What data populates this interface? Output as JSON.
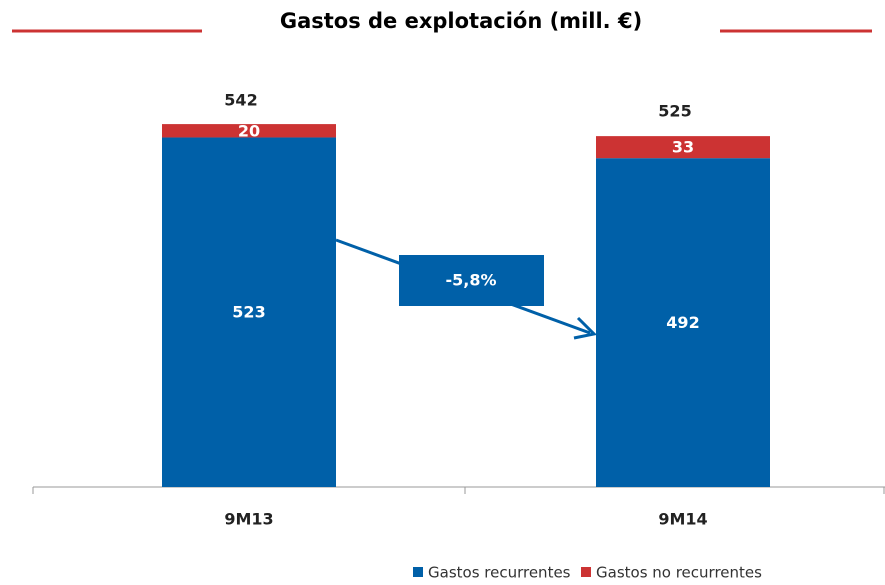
{
  "chart_data": {
    "type": "stacked_bar",
    "title": "Gastos de explotación (mill. €)",
    "categories": [
      "9M13",
      "9M14"
    ],
    "series": [
      {
        "name": "Gastos recurrentes",
        "color": "#0060a8",
        "values": [
          523,
          492
        ]
      },
      {
        "name": "Gastos no recurrentes",
        "color": "#cc3333",
        "values": [
          20,
          33
        ]
      }
    ],
    "totals": [
      542,
      525
    ],
    "annotation": "-5,8%",
    "ylim": [
      0,
      600
    ]
  }
}
